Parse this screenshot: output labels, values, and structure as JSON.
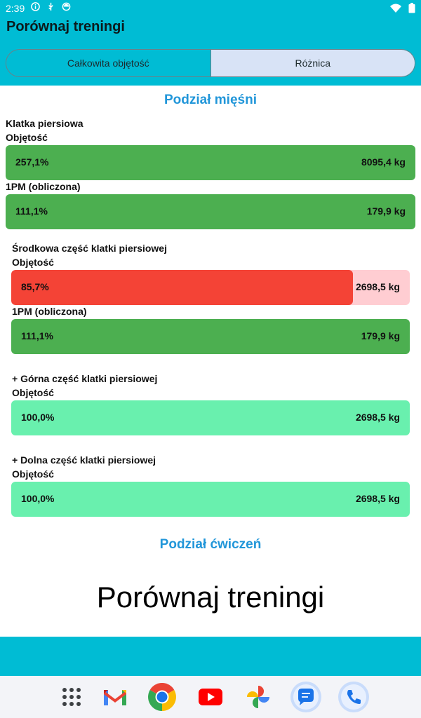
{
  "status": {
    "time": "2:39"
  },
  "app": {
    "title": "Porównaj treningi"
  },
  "segments": {
    "total": "Całkowita objętość",
    "difference": "Różnica"
  },
  "muscles": {
    "title": "Podział mięśni",
    "groups": [
      {
        "name": "Klatka piersiowa",
        "volume_label": "Objętość",
        "volume_pct": "257,1%",
        "volume_val": "8095,4 kg",
        "volume_fill": 1.0,
        "orm_label": "1PM (obliczona)",
        "orm_pct": "111,1%",
        "orm_val": "179,9 kg",
        "orm_fill": 1.0
      },
      {
        "name": "Środkowa część klatki piersiowej",
        "volume_label": "Objętość",
        "volume_pct": "85,7%",
        "volume_val": "2698,5 kg",
        "volume_fill": 0.857,
        "orm_label": "1PM (obliczona)",
        "orm_pct": "111,1%",
        "orm_val": "179,9 kg",
        "orm_fill": 1.0
      },
      {
        "name": "+ Górna część klatki piersiowej",
        "volume_label": "Objętość",
        "volume_pct": "100,0%",
        "volume_val": "2698,5 kg",
        "volume_fill": 1.0
      },
      {
        "name": "+ Dolna część klatki piersiowej",
        "volume_label": "Objętość",
        "volume_pct": "100,0%",
        "volume_val": "2698,5 kg",
        "volume_fill": 1.0
      }
    ]
  },
  "exercises": {
    "title": "Podział ćwiczeń"
  },
  "placeholder": {
    "text": "Porównaj treningi"
  },
  "dock": {
    "icons": [
      "app-drawer-icon",
      "gmail-icon",
      "chrome-icon",
      "youtube-icon",
      "photos-icon",
      "messages-icon",
      "phone-icon"
    ]
  },
  "colors": {
    "accent": "#00bcd4",
    "increase": "#4caf50",
    "decrease": "#f44336",
    "decrease_bg": "#ffcdd2",
    "neutral": "#69f0ae",
    "section_title": "#2196d9"
  }
}
